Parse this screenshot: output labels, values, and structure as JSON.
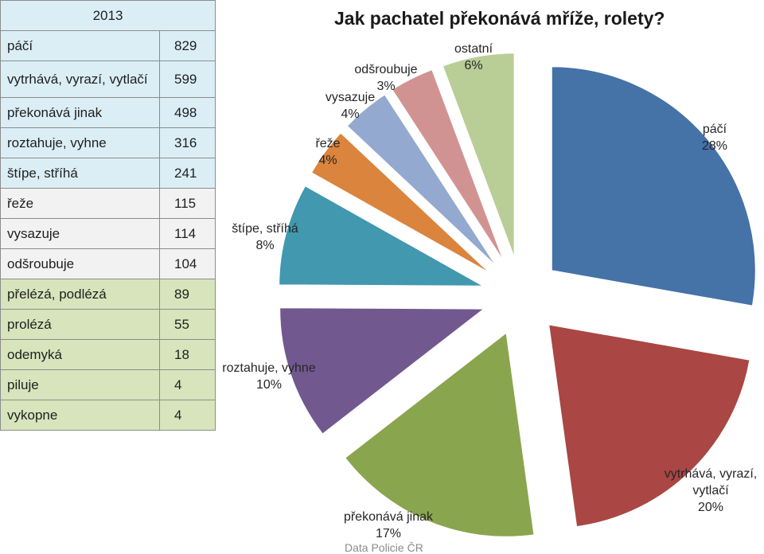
{
  "table": {
    "year": "2013",
    "rows": [
      {
        "label": "páčí",
        "value": "829",
        "group": "blue"
      },
      {
        "label": "vytrhává, vyrazí, vytlačí",
        "value": "599",
        "group": "blue"
      },
      {
        "label": "překonává jinak",
        "value": "498",
        "group": "blue"
      },
      {
        "label": "roztahuje, vyhne",
        "value": "316",
        "group": "blue"
      },
      {
        "label": "štípe, stříhá",
        "value": "241",
        "group": "blue"
      },
      {
        "label": "řeže",
        "value": "115",
        "group": "gray"
      },
      {
        "label": "vysazuje",
        "value": "114",
        "group": "gray"
      },
      {
        "label": "odšroubuje",
        "value": "104",
        "group": "gray"
      },
      {
        "label": "přelézá, podlézá",
        "value": "89",
        "group": "green"
      },
      {
        "label": "prolézá",
        "value": "55",
        "group": "green"
      },
      {
        "label": "odemyká",
        "value": "18",
        "group": "green"
      },
      {
        "label": "piluje",
        "value": "4",
        "group": "green"
      },
      {
        "label": "vykopne",
        "value": "4",
        "group": "green"
      }
    ]
  },
  "chart_data": {
    "type": "pie",
    "title": "Jak pachatel překonává mříže, rolety?",
    "slices": [
      {
        "name": "páčí",
        "percent_label": "28%",
        "value": 829,
        "color": "#4572a7"
      },
      {
        "name": "vytrhává, vyrazí, vytlačí",
        "percent_label": "20%",
        "value": 599,
        "color": "#aa4643"
      },
      {
        "name": "překonává jinak",
        "percent_label": "17%",
        "value": 498,
        "color": "#89a54e"
      },
      {
        "name": "roztahuje, vyhne",
        "percent_label": "10%",
        "value": 316,
        "color": "#71588f"
      },
      {
        "name": "štípe, stříhá",
        "percent_label": "8%",
        "value": 241,
        "color": "#4198af"
      },
      {
        "name": "řeže",
        "percent_label": "4%",
        "value": 115,
        "color": "#db843d"
      },
      {
        "name": "vysazuje",
        "percent_label": "4%",
        "value": 114,
        "color": "#93a9cf"
      },
      {
        "name": "odšroubuje",
        "percent_label": "3%",
        "value": 104,
        "color": "#d19392"
      },
      {
        "name": "ostatní",
        "percent_label": "6%",
        "value": 170,
        "color": "#b9cd96"
      }
    ]
  },
  "source": "Data Policie ČR"
}
